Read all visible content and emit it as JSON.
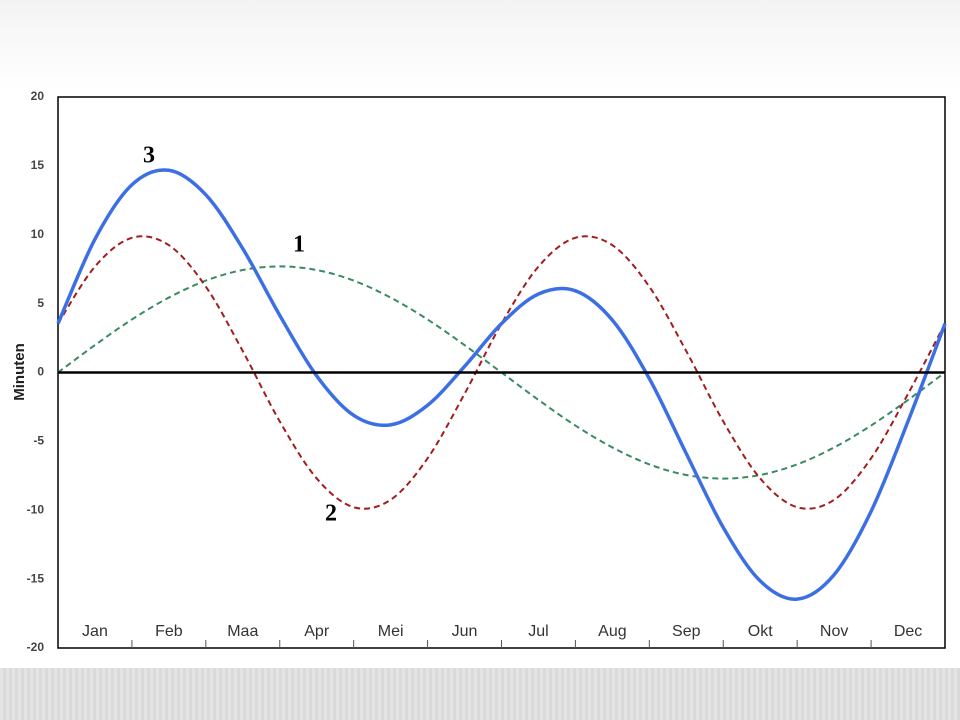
{
  "chart_data": {
    "type": "line",
    "y_label": "Minuten",
    "categories": [
      "Jan",
      "Feb",
      "Maa",
      "Apr",
      "Mei",
      "Jun",
      "Jul",
      "Aug",
      "Sep",
      "Okt",
      "Nov",
      "Dec"
    ],
    "x": [
      0,
      0.5,
      1,
      1.5,
      2,
      2.5,
      3,
      3.5,
      4,
      4.5,
      5,
      5.5,
      6,
      6.5,
      7,
      7.5,
      8,
      8.5,
      9,
      9.5,
      10,
      10.5,
      11,
      11.5,
      12
    ],
    "xlim": [
      0,
      12
    ],
    "ylim": [
      -20,
      20
    ],
    "yticks": [
      -20,
      -15,
      -10,
      -5,
      0,
      5,
      10,
      15,
      20
    ],
    "grid": false,
    "annotations": [
      "1",
      "2",
      "3"
    ],
    "series": [
      {
        "color": "#3a8a62",
        "dashed": true,
        "values": [
          0,
          1.99,
          3.85,
          5.44,
          6.67,
          7.44,
          7.7,
          7.44,
          6.67,
          5.44,
          3.85,
          1.99,
          0,
          -1.99,
          -3.85,
          -5.44,
          -6.67,
          -7.44,
          -7.7,
          -7.44,
          -6.67,
          -5.44,
          -3.85,
          -1.99,
          0
        ]
      },
      {
        "color": "#a31d1d",
        "dashed": true,
        "values": [
          3.55,
          7.69,
          9.78,
          9.24,
          6.23,
          1.55,
          -3.55,
          -7.69,
          -9.78,
          -9.24,
          -6.23,
          -1.55,
          3.55,
          7.69,
          9.78,
          9.24,
          6.23,
          1.55,
          -3.55,
          -7.69,
          -9.78,
          -9.24,
          -6.23,
          -1.55,
          3.55
        ]
      },
      {
        "color": "#3b6fe3",
        "dashed": false,
        "values": [
          3.55,
          9.68,
          13.63,
          14.68,
          12.9,
          8.99,
          4.15,
          -0.25,
          -3.11,
          -3.8,
          -2.38,
          0.44,
          3.55,
          5.7,
          5.93,
          3.8,
          -0.44,
          -5.89,
          -11.25,
          -15.13,
          -16.45,
          -14.68,
          -10.08,
          -3.54,
          3.55
        ]
      }
    ]
  }
}
